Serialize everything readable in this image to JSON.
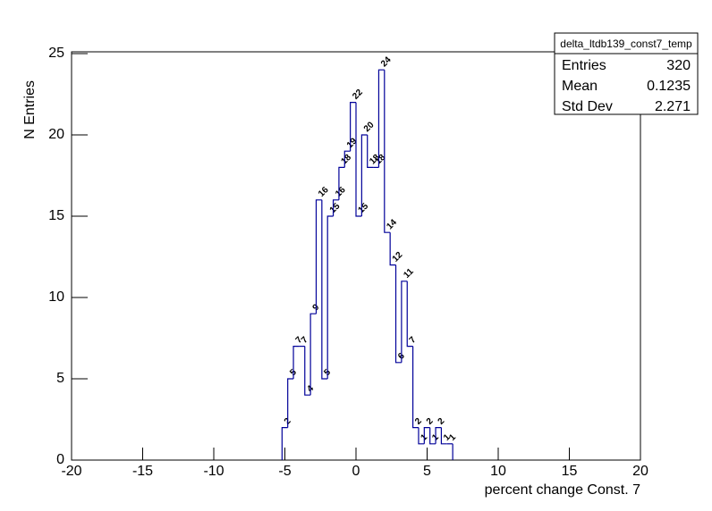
{
  "chart_data": {
    "type": "histogram",
    "stats_title": "delta_ltdb139_const7_temp",
    "stats": [
      {
        "label": "Entries",
        "value": 320
      },
      {
        "label": "Mean",
        "value": 0.1235
      },
      {
        "label": "Std Dev",
        "value": 2.271
      }
    ],
    "x_label": "percent change Const. 7",
    "y_label": "N Entries",
    "color": "#000099",
    "bins": [
      -5.2,
      -4.8,
      -4.4,
      -4.0,
      -3.6,
      -3.2,
      -2.8,
      -2.4,
      -2.0,
      -1.6,
      -1.2,
      -0.8,
      -0.4,
      0,
      0.4,
      0.8,
      1.2,
      1.6,
      2.0,
      2.4,
      2.8,
      3.2,
      3.6,
      4.0,
      4.4,
      4.8,
      5.2,
      5.6,
      6.0,
      6.4,
      6.8
    ],
    "values": [
      2,
      5,
      7,
      7,
      4,
      9,
      16,
      5,
      15,
      16,
      18,
      19,
      22,
      15,
      20,
      18,
      18,
      24,
      14,
      12,
      6,
      11,
      7,
      2,
      1,
      2,
      1,
      2,
      1,
      1
    ],
    "xlim": [
      -20,
      20
    ],
    "ylim": [
      0,
      25
    ],
    "xticks": [
      -20,
      -15,
      -10,
      -5,
      0,
      5,
      10,
      15,
      20
    ],
    "yticks": [
      0,
      5,
      10,
      15,
      20,
      25
    ]
  }
}
